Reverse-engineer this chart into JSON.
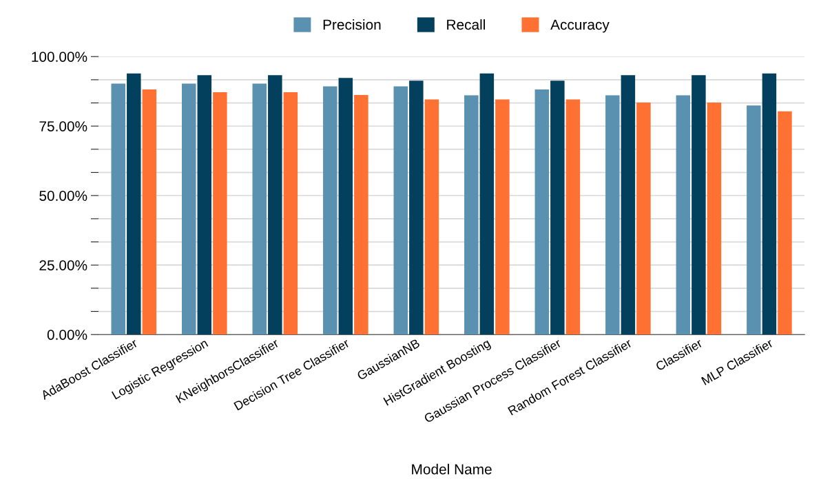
{
  "chart_data": {
    "type": "bar",
    "xlabel": "Model Name",
    "categories": [
      "AdaBoost Classifier",
      "Logistic Regression",
      "KNeighborsClassifier",
      "Decision Tree Classifier",
      "GaussianNB",
      "HistGradient Boosting",
      "Gaussian Process Classifier",
      "Random Forest Classifier",
      "Classifier",
      "MLP Classifier"
    ],
    "series": [
      {
        "name": "Precision",
        "color": "#5b91b0",
        "values": [
          90.3,
          90.3,
          90.3,
          89.3,
          89.3,
          86.1,
          88.2,
          86.1,
          86.1,
          82.4
        ]
      },
      {
        "name": "Recall",
        "color": "#03405e",
        "values": [
          93.9,
          93.3,
          93.3,
          92.3,
          91.3,
          93.9,
          91.3,
          93.3,
          93.3,
          93.9
        ]
      },
      {
        "name": "Accuracy",
        "color": "#ff7033",
        "values": [
          88.2,
          87.2,
          87.2,
          86.2,
          84.6,
          84.6,
          84.6,
          83.5,
          83.5,
          80.3
        ]
      }
    ],
    "ylim": [
      0,
      100
    ],
    "yticks": [
      {
        "value": 0,
        "label": "0.00%"
      },
      {
        "value": 8.33,
        "label": null
      },
      {
        "value": 16.67,
        "label": null
      },
      {
        "value": 25,
        "label": "25.00%"
      },
      {
        "value": 33.33,
        "label": null
      },
      {
        "value": 41.67,
        "label": null
      },
      {
        "value": 50,
        "label": "50.00%"
      },
      {
        "value": 58.33,
        "label": null
      },
      {
        "value": 66.67,
        "label": null
      },
      {
        "value": 75,
        "label": "75.00%"
      },
      {
        "value": 83.33,
        "label": null
      },
      {
        "value": 91.67,
        "label": null
      },
      {
        "value": 100,
        "label": "100.00%"
      }
    ],
    "grid": "y",
    "legend": "top"
  }
}
